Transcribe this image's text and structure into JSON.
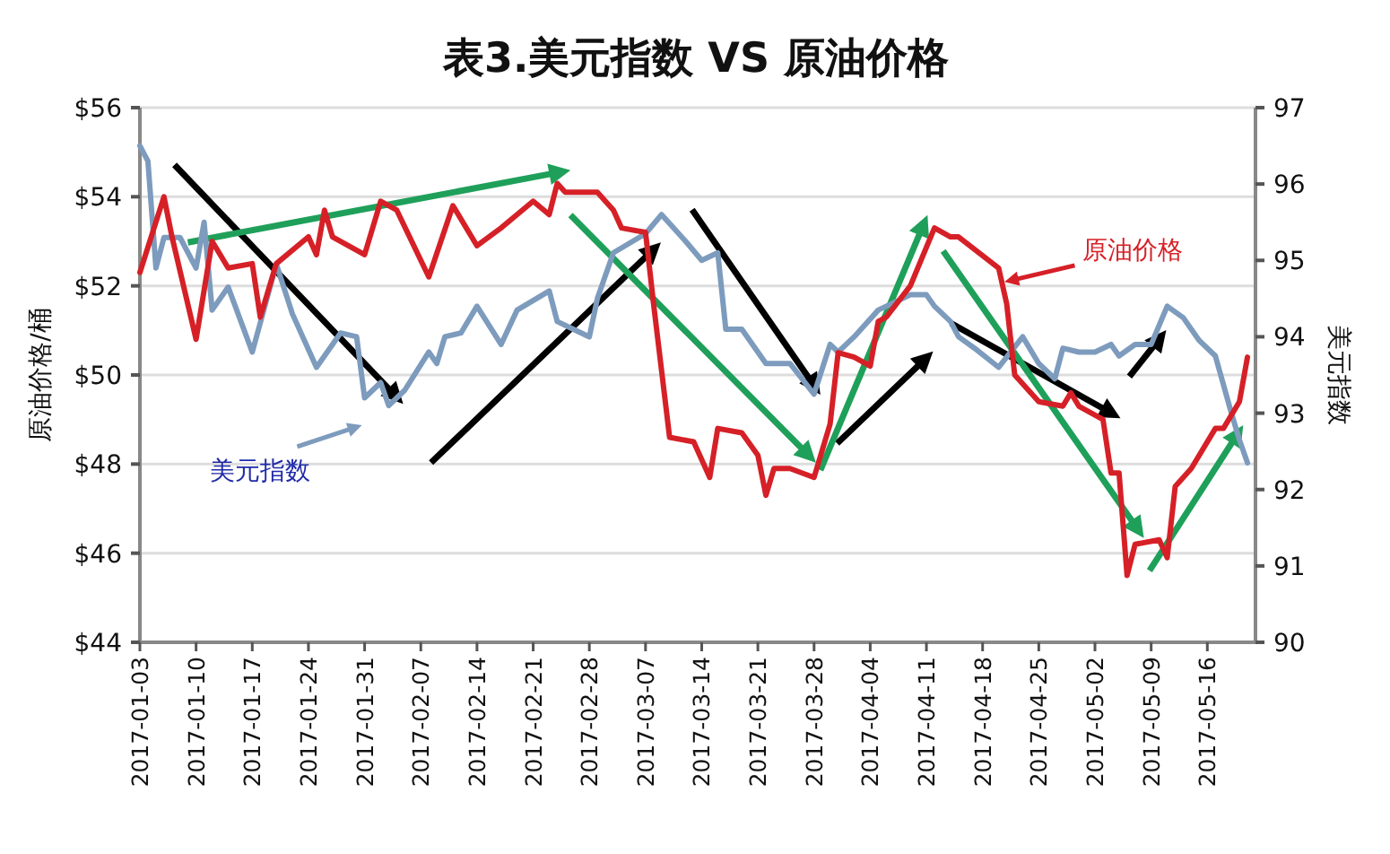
{
  "chart_data": {
    "type": "line",
    "title": "表3.美元指数 VS 原油价格",
    "ylabel": "原油价格/桶",
    "y2label": "美元指数",
    "xlim": [
      "2017-01-03",
      "2017-05-22"
    ],
    "xticks": [
      "2017-01-03",
      "2017-01-10",
      "2017-01-17",
      "2017-01-24",
      "2017-01-31",
      "2017-02-07",
      "2017-02-14",
      "2017-02-21",
      "2017-02-28",
      "2017-03-07",
      "2017-03-14",
      "2017-03-21",
      "2017-03-28",
      "2017-04-04",
      "2017-04-11",
      "2017-04-18",
      "2017-04-25",
      "2017-05-02",
      "2017-05-09",
      "2017-05-16"
    ],
    "ylim": [
      44,
      56
    ],
    "yticks": [
      {
        "value": 44,
        "label": "$44"
      },
      {
        "value": 46,
        "label": "$46"
      },
      {
        "value": 48,
        "label": "$48"
      },
      {
        "value": 50,
        "label": "$50"
      },
      {
        "value": 52,
        "label": "$52"
      },
      {
        "value": 54,
        "label": "$54"
      },
      {
        "value": 56,
        "label": "$56"
      }
    ],
    "y2lim": [
      90,
      97
    ],
    "y2ticks": [
      90,
      91,
      92,
      93,
      94,
      95,
      96,
      97
    ],
    "grid": "y",
    "series": [
      {
        "name": "美元指数",
        "axis": "y2",
        "color": "#7d9bbd",
        "x": [
          "2017-01-03",
          "2017-01-04",
          "2017-01-05",
          "2017-01-06",
          "2017-01-08",
          "2017-01-10",
          "2017-01-11",
          "2017-01-12",
          "2017-01-14",
          "2017-01-17",
          "2017-01-20",
          "2017-01-22",
          "2017-01-25",
          "2017-01-28",
          "2017-01-30",
          "2017-01-31",
          "2017-02-02",
          "2017-02-03",
          "2017-02-05",
          "2017-02-08",
          "2017-02-09",
          "2017-02-10",
          "2017-02-12",
          "2017-02-14",
          "2017-02-17",
          "2017-02-19",
          "2017-02-23",
          "2017-02-24",
          "2017-02-26",
          "2017-02-28",
          "2017-03-01",
          "2017-03-03",
          "2017-03-07",
          "2017-03-09",
          "2017-03-12",
          "2017-03-14",
          "2017-03-16",
          "2017-03-17",
          "2017-03-19",
          "2017-03-21",
          "2017-03-22",
          "2017-03-25",
          "2017-03-28",
          "2017-03-30",
          "2017-03-31",
          "2017-04-02",
          "2017-04-05",
          "2017-04-09",
          "2017-04-11",
          "2017-04-12",
          "2017-04-14",
          "2017-04-15",
          "2017-04-17",
          "2017-04-20",
          "2017-04-23",
          "2017-04-25",
          "2017-04-27",
          "2017-04-28",
          "2017-04-30",
          "2017-05-02",
          "2017-05-04",
          "2017-05-05",
          "2017-05-07",
          "2017-05-09",
          "2017-05-11",
          "2017-05-13",
          "2017-05-15",
          "2017-05-17",
          "2017-05-19",
          "2017-05-20",
          "2017-05-21"
        ],
        "values": [
          96.5,
          96.3,
          94.9,
          95.3,
          95.3,
          94.9,
          95.5,
          94.35,
          94.65,
          93.8,
          94.95,
          94.3,
          93.6,
          94.05,
          94.0,
          93.2,
          93.4,
          93.1,
          93.3,
          93.8,
          93.65,
          94.0,
          94.05,
          94.4,
          93.9,
          94.35,
          94.6,
          94.2,
          94.1,
          94.0,
          94.5,
          95.1,
          95.35,
          95.6,
          95.25,
          95.0,
          95.1,
          94.1,
          94.1,
          93.8,
          93.65,
          93.65,
          93.25,
          93.9,
          93.8,
          94.0,
          94.35,
          94.55,
          94.55,
          94.4,
          94.2,
          94.0,
          93.85,
          93.6,
          94.0,
          93.65,
          93.45,
          93.85,
          93.8,
          93.8,
          93.9,
          93.75,
          93.9,
          93.9,
          94.4,
          94.25,
          93.95,
          93.75,
          93.0,
          92.65,
          92.35
        ]
      },
      {
        "name": "原油价格",
        "axis": "y",
        "color": "#d62027",
        "x": [
          "2017-01-03",
          "2017-01-06",
          "2017-01-07",
          "2017-01-10",
          "2017-01-12",
          "2017-01-14",
          "2017-01-17",
          "2017-01-18",
          "2017-01-20",
          "2017-01-24",
          "2017-01-25",
          "2017-01-26",
          "2017-01-27",
          "2017-01-31",
          "2017-02-02",
          "2017-02-04",
          "2017-02-08",
          "2017-02-11",
          "2017-02-14",
          "2017-02-17",
          "2017-02-21",
          "2017-02-23",
          "2017-02-24",
          "2017-02-25",
          "2017-03-01",
          "2017-03-03",
          "2017-03-04",
          "2017-03-07",
          "2017-03-08",
          "2017-03-10",
          "2017-03-13",
          "2017-03-15",
          "2017-03-16",
          "2017-03-19",
          "2017-03-21",
          "2017-03-22",
          "2017-03-23",
          "2017-03-25",
          "2017-03-28",
          "2017-03-30",
          "2017-03-31",
          "2017-04-02",
          "2017-04-04",
          "2017-04-05",
          "2017-04-06",
          "2017-04-09",
          "2017-04-12",
          "2017-04-14",
          "2017-04-15",
          "2017-04-20",
          "2017-04-21",
          "2017-04-22",
          "2017-04-25",
          "2017-04-28",
          "2017-04-29",
          "2017-04-30",
          "2017-05-03",
          "2017-05-04",
          "2017-05-05",
          "2017-05-06",
          "2017-05-07",
          "2017-05-10",
          "2017-05-11",
          "2017-05-12",
          "2017-05-14",
          "2017-05-17",
          "2017-05-18",
          "2017-05-20",
          "2017-05-21"
        ],
        "values": [
          52.3,
          54.0,
          53.1,
          50.8,
          53.0,
          52.4,
          52.5,
          51.3,
          52.5,
          53.1,
          52.7,
          53.7,
          53.1,
          52.7,
          53.9,
          53.7,
          52.2,
          53.8,
          52.9,
          53.3,
          53.9,
          53.6,
          54.3,
          54.1,
          54.1,
          53.7,
          53.3,
          53.2,
          51.6,
          48.6,
          48.5,
          47.7,
          48.8,
          48.7,
          48.2,
          47.3,
          47.9,
          47.9,
          47.7,
          48.9,
          50.5,
          50.4,
          50.2,
          51.2,
          51.3,
          52.0,
          53.3,
          53.1,
          53.1,
          52.4,
          51.6,
          50.0,
          49.4,
          49.3,
          49.6,
          49.3,
          49.0,
          47.8,
          47.8,
          45.5,
          46.2,
          46.3,
          45.9,
          47.5,
          47.9,
          48.8,
          48.8,
          49.4,
          50.4
        ]
      }
    ]
  }
}
